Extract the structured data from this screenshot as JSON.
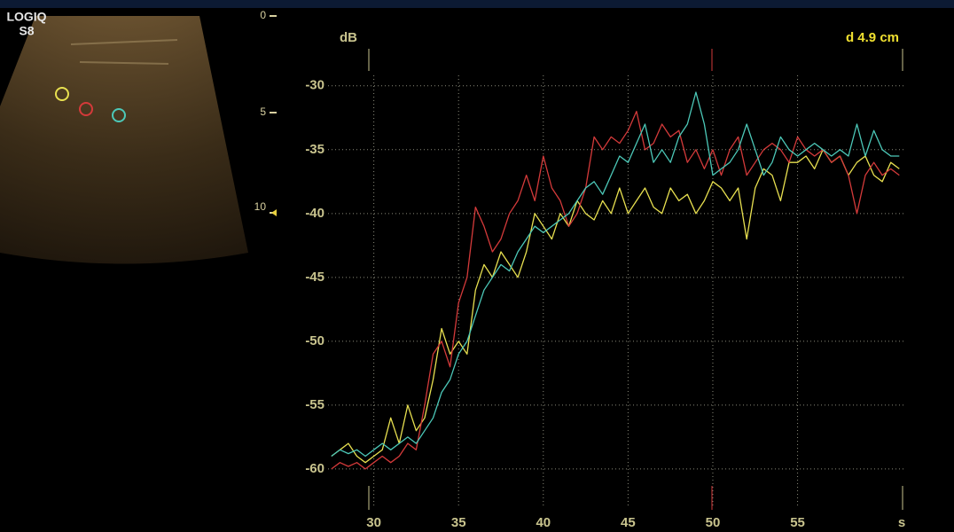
{
  "device": {
    "name": "LOGIQ",
    "model": "S8"
  },
  "depth_scale": {
    "labels": [
      "0",
      "5",
      "10"
    ]
  },
  "chart_data": {
    "type": "line",
    "y_label": "dB",
    "x_label": "s",
    "annotation": "d 4.9 cm",
    "grid": true,
    "xlim": [
      27.3,
      61.3
    ],
    "ylim": [
      -63.2,
      -27.1
    ],
    "xticks": [
      30,
      35,
      40,
      45,
      50,
      55
    ],
    "yticks": [
      -30,
      -35,
      -40,
      -45,
      -50,
      -55,
      -60
    ],
    "x": [
      27.5,
      28,
      28.5,
      29,
      29.5,
      30,
      30.5,
      31,
      31.5,
      32,
      32.5,
      33,
      33.5,
      34,
      34.5,
      35,
      35.5,
      36,
      36.5,
      37,
      37.5,
      38,
      38.5,
      39,
      39.5,
      40,
      40.5,
      41,
      41.5,
      42,
      42.5,
      43,
      43.5,
      44,
      44.5,
      45,
      45.5,
      46,
      46.5,
      47,
      47.5,
      48,
      48.5,
      49,
      49.5,
      50,
      50.5,
      51,
      51.5,
      52,
      52.5,
      53,
      53.5,
      54,
      54.5,
      55,
      55.5,
      56,
      56.5,
      57,
      57.5,
      58,
      58.5,
      59,
      59.5,
      60,
      60.5,
      61
    ],
    "series": [
      {
        "color": "#e8e050",
        "values": [
          -59,
          -58.5,
          -58,
          -59,
          -59.5,
          -59,
          -58.5,
          -56,
          -58,
          -55,
          -57,
          -56,
          -53,
          -49,
          -51,
          -50,
          -51,
          -46,
          -44,
          -45,
          -43,
          -44,
          -45,
          -43,
          -40,
          -41,
          -42,
          -40,
          -41,
          -39,
          -40,
          -40.5,
          -39,
          -40,
          -38,
          -40,
          -39,
          -38,
          -39.5,
          -40,
          -38,
          -39,
          -38.5,
          -40,
          -39,
          -37.5,
          -38,
          -39,
          -38,
          -42,
          -38,
          -36.5,
          -37,
          -39,
          -36,
          -36,
          -35.5,
          -36.5,
          -35,
          -36,
          -35.5,
          -37,
          -36,
          -35.5,
          -37,
          -37.5,
          -36,
          -36.5
        ]
      },
      {
        "color": "#d43a3a",
        "values": [
          -60,
          -59.5,
          -59.8,
          -59.5,
          -60,
          -59.5,
          -59,
          -59.5,
          -59,
          -58,
          -58.5,
          -55,
          -51,
          -50,
          -52,
          -47,
          -45,
          -39.5,
          -41,
          -43,
          -42,
          -40,
          -39,
          -37,
          -39,
          -35.5,
          -38,
          -39,
          -41,
          -40,
          -38,
          -34,
          -35,
          -34,
          -34.5,
          -33.5,
          -32,
          -35,
          -34.5,
          -33,
          -34,
          -33.5,
          -36,
          -35,
          -36.5,
          -35,
          -37,
          -35,
          -34,
          -37,
          -36,
          -35,
          -34.5,
          -35,
          -36,
          -34,
          -35,
          -35.5,
          -35,
          -36,
          -35.5,
          -37,
          -40,
          -37,
          -36,
          -37,
          -36.5,
          -37
        ]
      },
      {
        "color": "#4cc8b8",
        "values": [
          -59,
          -58.5,
          -58.8,
          -58.5,
          -59,
          -58.5,
          -58,
          -58.5,
          -58,
          -57.5,
          -58,
          -57,
          -56,
          -54,
          -53,
          -51,
          -50,
          -48,
          -46,
          -45,
          -44,
          -44.5,
          -43,
          -42,
          -41,
          -41.5,
          -41,
          -40.5,
          -40,
          -39,
          -38,
          -37.5,
          -38.5,
          -37,
          -35.5,
          -36,
          -34.5,
          -33,
          -36,
          -35,
          -36,
          -34,
          -33,
          -30.5,
          -33,
          -37,
          -36.5,
          -36,
          -35,
          -33,
          -35,
          -37,
          -36,
          -34,
          -35,
          -35.5,
          -35,
          -34.5,
          -35,
          -35.5,
          -35,
          -35.5,
          -33,
          -35.5,
          -33.5,
          -35,
          -35.5,
          -35.5
        ]
      }
    ]
  }
}
